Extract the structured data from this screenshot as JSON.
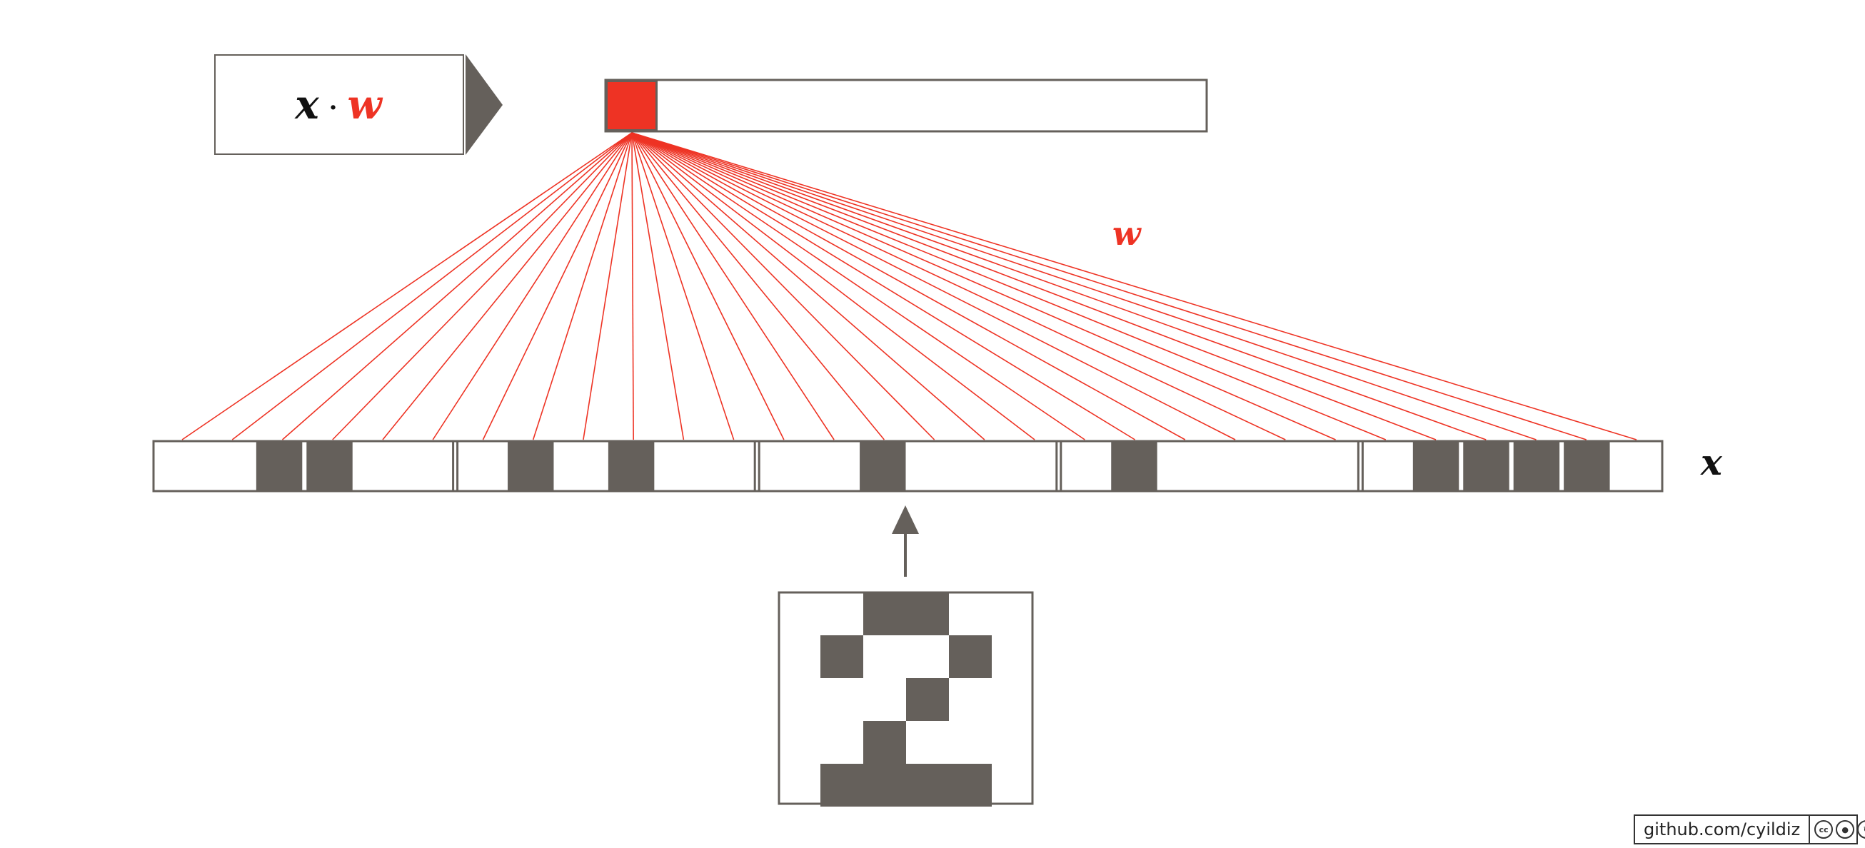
{
  "formula": {
    "x": "x",
    "dot": "·",
    "w": "w"
  },
  "labels": {
    "weights": "w",
    "input": "x"
  },
  "input_vector": [
    0,
    0,
    1,
    1,
    0,
    0,
    0,
    1,
    0,
    1,
    0,
    0,
    0,
    0,
    1,
    0,
    0,
    0,
    0,
    1,
    0,
    0,
    0,
    0,
    0,
    1,
    1,
    1,
    1,
    0
  ],
  "digit_grid": [
    [
      0,
      1,
      1,
      0
    ],
    [
      1,
      0,
      0,
      1
    ],
    [
      0,
      0,
      1,
      0
    ],
    [
      0,
      1,
      0,
      0
    ],
    [
      1,
      1,
      1,
      1
    ]
  ],
  "rows": 5,
  "cols": 6,
  "output_cells": 12,
  "highlighted_output": 0,
  "colors": {
    "accent": "#ee3324",
    "fill": "#65605b",
    "stroke": "#65605b"
  },
  "credit": {
    "text": "github.com/cyildiz",
    "icons": [
      "cc-icon",
      "by-icon",
      "sa-icon"
    ]
  }
}
